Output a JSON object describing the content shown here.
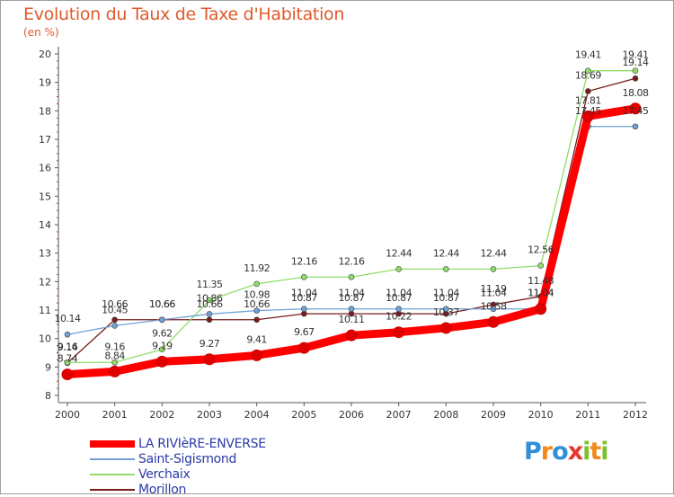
{
  "title": "Evolution du Taux de Taxe d'Habitation",
  "subtitle": "(en %)",
  "logo": {
    "letters": [
      {
        "ch": "P",
        "color": "#2f8fd8"
      },
      {
        "ch": "r",
        "color": "#f08a1c"
      },
      {
        "ch": "o",
        "color": "#2f8fd8"
      },
      {
        "ch": "x",
        "color": "#e6362e"
      },
      {
        "ch": "i",
        "color": "#7cc22e"
      },
      {
        "ch": "t",
        "color": "#f08a1c"
      },
      {
        "ch": "i",
        "color": "#7cc22e"
      }
    ]
  },
  "chart_data": {
    "type": "line",
    "x": [
      "2000",
      "2001",
      "2002",
      "2003",
      "2004",
      "2005",
      "2006",
      "2007",
      "2008",
      "2009",
      "2010",
      "2011",
      "2012"
    ],
    "yticks": [
      "8",
      "9",
      "10",
      "11",
      "12",
      "13",
      "14",
      "15",
      "16",
      "17",
      "18",
      "19",
      "20"
    ],
    "ylim": [
      8,
      20
    ],
    "grid": false,
    "legend_position": "bottom-left",
    "series": [
      {
        "name": "LA RIVIèRE-ENVERSE",
        "color": "#ff0000",
        "values": [
          8.74,
          8.84,
          9.19,
          9.27,
          9.41,
          9.67,
          10.11,
          10.22,
          10.37,
          10.58,
          11.04,
          17.81,
          18.08
        ],
        "labels": [
          "8.74",
          "8.84",
          "9.19",
          "9.27",
          "9.41",
          "9.67",
          "10.11",
          "10.22",
          "10.37",
          "10.58",
          "11.04",
          "17.81",
          "18.08"
        ]
      },
      {
        "name": "Saint-Sigismond",
        "color": "#6fa1d6",
        "values": [
          10.14,
          10.45,
          10.66,
          10.86,
          10.98,
          11.04,
          11.04,
          11.04,
          11.04,
          11.04,
          11.04,
          17.45,
          17.45
        ],
        "labels": [
          "10.14",
          "10.45",
          "10.66",
          "10.86",
          "10.98",
          "11.04",
          "11.04",
          "11.04",
          "11.04",
          "11.04",
          "11.04",
          "17.45",
          "17.45"
        ]
      },
      {
        "name": "Verchaix",
        "color": "#8fdd6a",
        "values": [
          9.16,
          9.16,
          9.62,
          11.35,
          11.92,
          12.16,
          12.16,
          12.44,
          12.44,
          12.44,
          12.56,
          19.41,
          19.41
        ],
        "labels": [
          "9.16",
          "9.16",
          "9.62",
          "11.35",
          "11.92",
          "12.16",
          "12.16",
          "12.44",
          "12.44",
          "12.44",
          "12.56",
          "19.41",
          "19.41"
        ]
      },
      {
        "name": "Morillon",
        "color": "#7a1c1c",
        "values": [
          9.14,
          10.66,
          10.66,
          10.66,
          10.66,
          10.87,
          10.87,
          10.87,
          10.87,
          11.19,
          11.48,
          18.69,
          19.14
        ],
        "labels": [
          "9.14",
          "10.66",
          "10.66",
          "10.66",
          "10.66",
          "10.87",
          "10.87",
          "10.87",
          "10.87",
          "11.19",
          "11.48",
          "18.69",
          "19.14"
        ]
      }
    ]
  }
}
